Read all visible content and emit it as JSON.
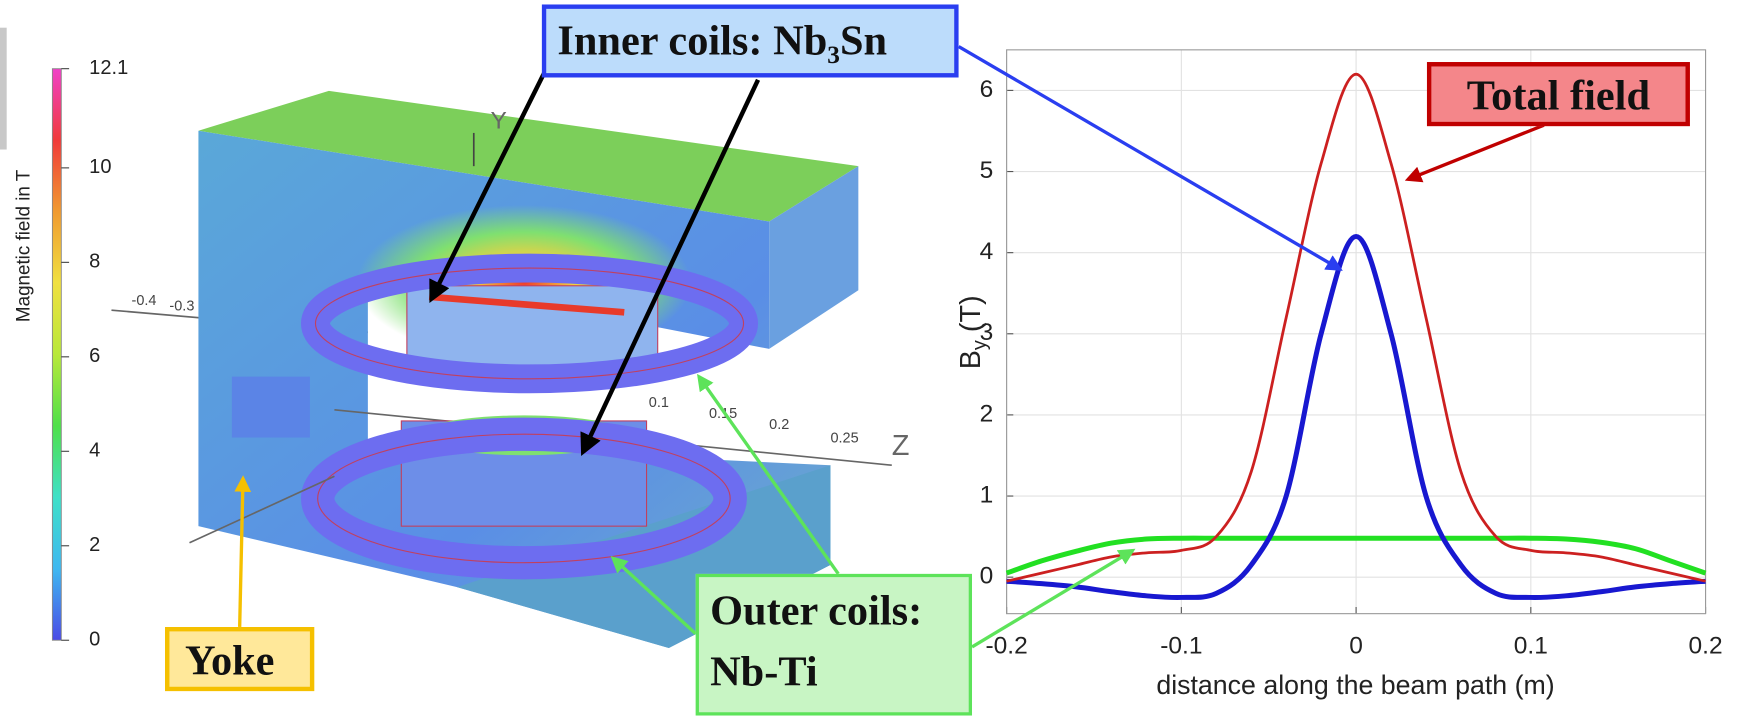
{
  "chart_data": [
    {
      "type": "colorbar",
      "ylabel": "Magnetic field in T",
      "ylim": [
        0,
        12.1
      ],
      "yticks": [
        0,
        2,
        4,
        6,
        8,
        10,
        12.1
      ],
      "colors": [
        "#4a4ae6",
        "#3fb8f0",
        "#3fe0c8",
        "#4fe04a",
        "#b8e83a",
        "#f0e040",
        "#f09a30",
        "#f03a3a",
        "#f040c8"
      ]
    },
    {
      "type": "line",
      "xlabel": "distance along the beam path (m)",
      "ylabel": [
        "B",
        "y",
        " (T)"
      ],
      "x": [
        -0.2,
        -0.18,
        -0.16,
        -0.14,
        -0.12,
        -0.1,
        -0.08,
        -0.06,
        -0.04,
        -0.02,
        0,
        0.02,
        0.04,
        0.06,
        0.08,
        0.1,
        0.12,
        0.14,
        0.16,
        0.18,
        0.2
      ],
      "series": [
        {
          "name": "Total field",
          "color": "#cc2020",
          "values": [
            -0.05,
            0.05,
            0.15,
            0.25,
            0.3,
            0.33,
            0.5,
            1.3,
            3.2,
            5.1,
            6.2,
            5.1,
            3.2,
            1.3,
            0.5,
            0.33,
            0.3,
            0.25,
            0.15,
            0.05,
            -0.05
          ]
        },
        {
          "name": "Inner coils: Nb₃Sn",
          "color": "#1818d0",
          "values": [
            -0.05,
            -0.08,
            -0.12,
            -0.18,
            -0.23,
            -0.25,
            -0.2,
            0.15,
            1.0,
            3.0,
            4.2,
            3.0,
            1.0,
            0.15,
            -0.2,
            -0.25,
            -0.23,
            -0.18,
            -0.12,
            -0.08,
            -0.05
          ]
        },
        {
          "name": "Outer coils: Nb-Ti",
          "color": "#22e022",
          "values": [
            0.05,
            0.2,
            0.32,
            0.42,
            0.47,
            0.48,
            0.48,
            0.48,
            0.48,
            0.48,
            0.48,
            0.48,
            0.48,
            0.48,
            0.48,
            0.48,
            0.47,
            0.43,
            0.35,
            0.2,
            0.05
          ]
        }
      ],
      "xlim": [
        -0.2,
        0.2
      ],
      "xticks": [
        -0.2,
        -0.1,
        0,
        0.1,
        0.2
      ],
      "ylim": [
        -0.45,
        6.5
      ],
      "yticks": [
        0,
        1,
        2,
        3,
        4,
        5,
        6
      ],
      "grid": true
    }
  ],
  "annotations": {
    "yoke": "Yoke"
  },
  "render_3d": {
    "axis_labels": [
      "Y",
      "Z",
      "-0.4",
      "-0.3",
      "0.1",
      "0.15",
      "0.2",
      "0.25"
    ]
  }
}
